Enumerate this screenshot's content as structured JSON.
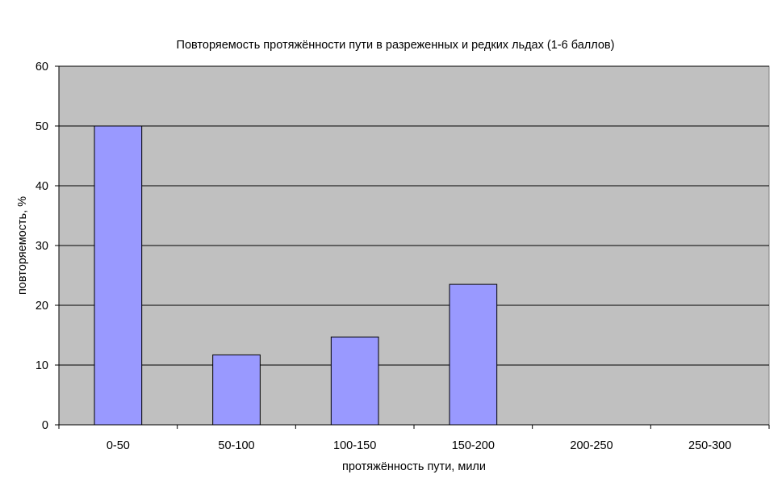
{
  "chart_data": {
    "type": "bar",
    "title": "Повторяемость протяжённости пути в разреженных и редких льдах (1-6 баллов)",
    "xlabel": "протяжённость пути, мили",
    "ylabel": "повторяемость, %",
    "categories": [
      "0-50",
      "50-100",
      "100-150",
      "150-200",
      "200-250",
      "250-300"
    ],
    "values": [
      50,
      11.7,
      14.7,
      23.5,
      0,
      0
    ],
    "ylim": [
      0,
      60
    ],
    "yticks": [
      0,
      10,
      20,
      30,
      40,
      50,
      60
    ],
    "grid": true,
    "legend": "none",
    "colors": {
      "plot_background": "#c0c0c0",
      "bar_fill": "#9999ff",
      "bar_stroke": "#000000",
      "gridline": "#000000"
    }
  }
}
